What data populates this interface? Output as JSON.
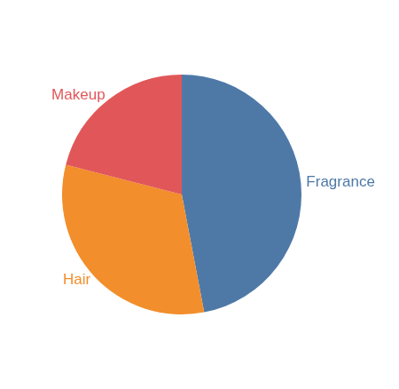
{
  "chart_data": {
    "type": "pie",
    "categories": [
      "Fragrance",
      "Hair",
      "Makeup"
    ],
    "values": [
      47,
      32,
      21
    ],
    "colors": [
      "#4e79a7",
      "#f28e2b",
      "#e15759"
    ]
  }
}
